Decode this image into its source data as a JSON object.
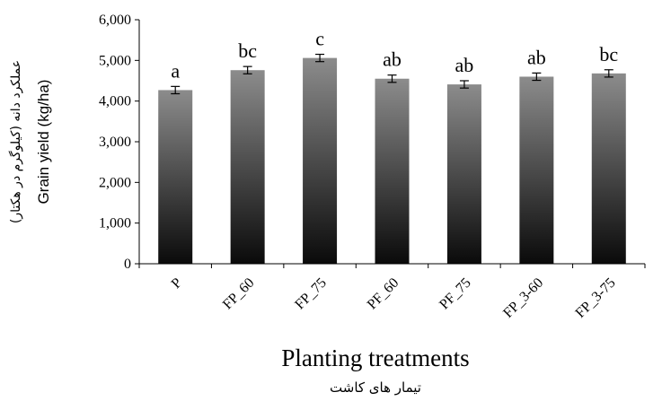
{
  "chart_data": {
    "type": "bar",
    "categories": [
      "P",
      "FP_60",
      "FP_75",
      "PF_60",
      "PF_75",
      "FP_3-60",
      "FP_3-75"
    ],
    "series": [
      {
        "values": [
          4270,
          4760,
          5060,
          4550,
          4410,
          4600,
          4680
        ],
        "errors": [
          90,
          90,
          90,
          90,
          90,
          90,
          90
        ],
        "significance_letters": [
          "a",
          "bc",
          "c",
          "ab",
          "ab",
          "ab",
          "bc"
        ]
      }
    ],
    "ylim": [
      0,
      6000
    ],
    "yticks": [
      0,
      1000,
      2000,
      3000,
      4000,
      5000,
      6000
    ],
    "ytick_labels": [
      "0",
      "1,000",
      "2,000",
      "3,000",
      "4,000",
      "5,000",
      "6,000"
    ],
    "xlabel": "Planting treatments",
    "xlabel_secondary": "تیمار های کاشت",
    "ylabel": "Grain yield (kg/ha)",
    "ylabel_secondary": "عملکرد دانه (کیلوگرم در هکتار)",
    "grid": false,
    "bar_fill": "gradient",
    "bar_color_top": "#8c8c8c",
    "bar_color_bottom": "#0a0a0a"
  }
}
